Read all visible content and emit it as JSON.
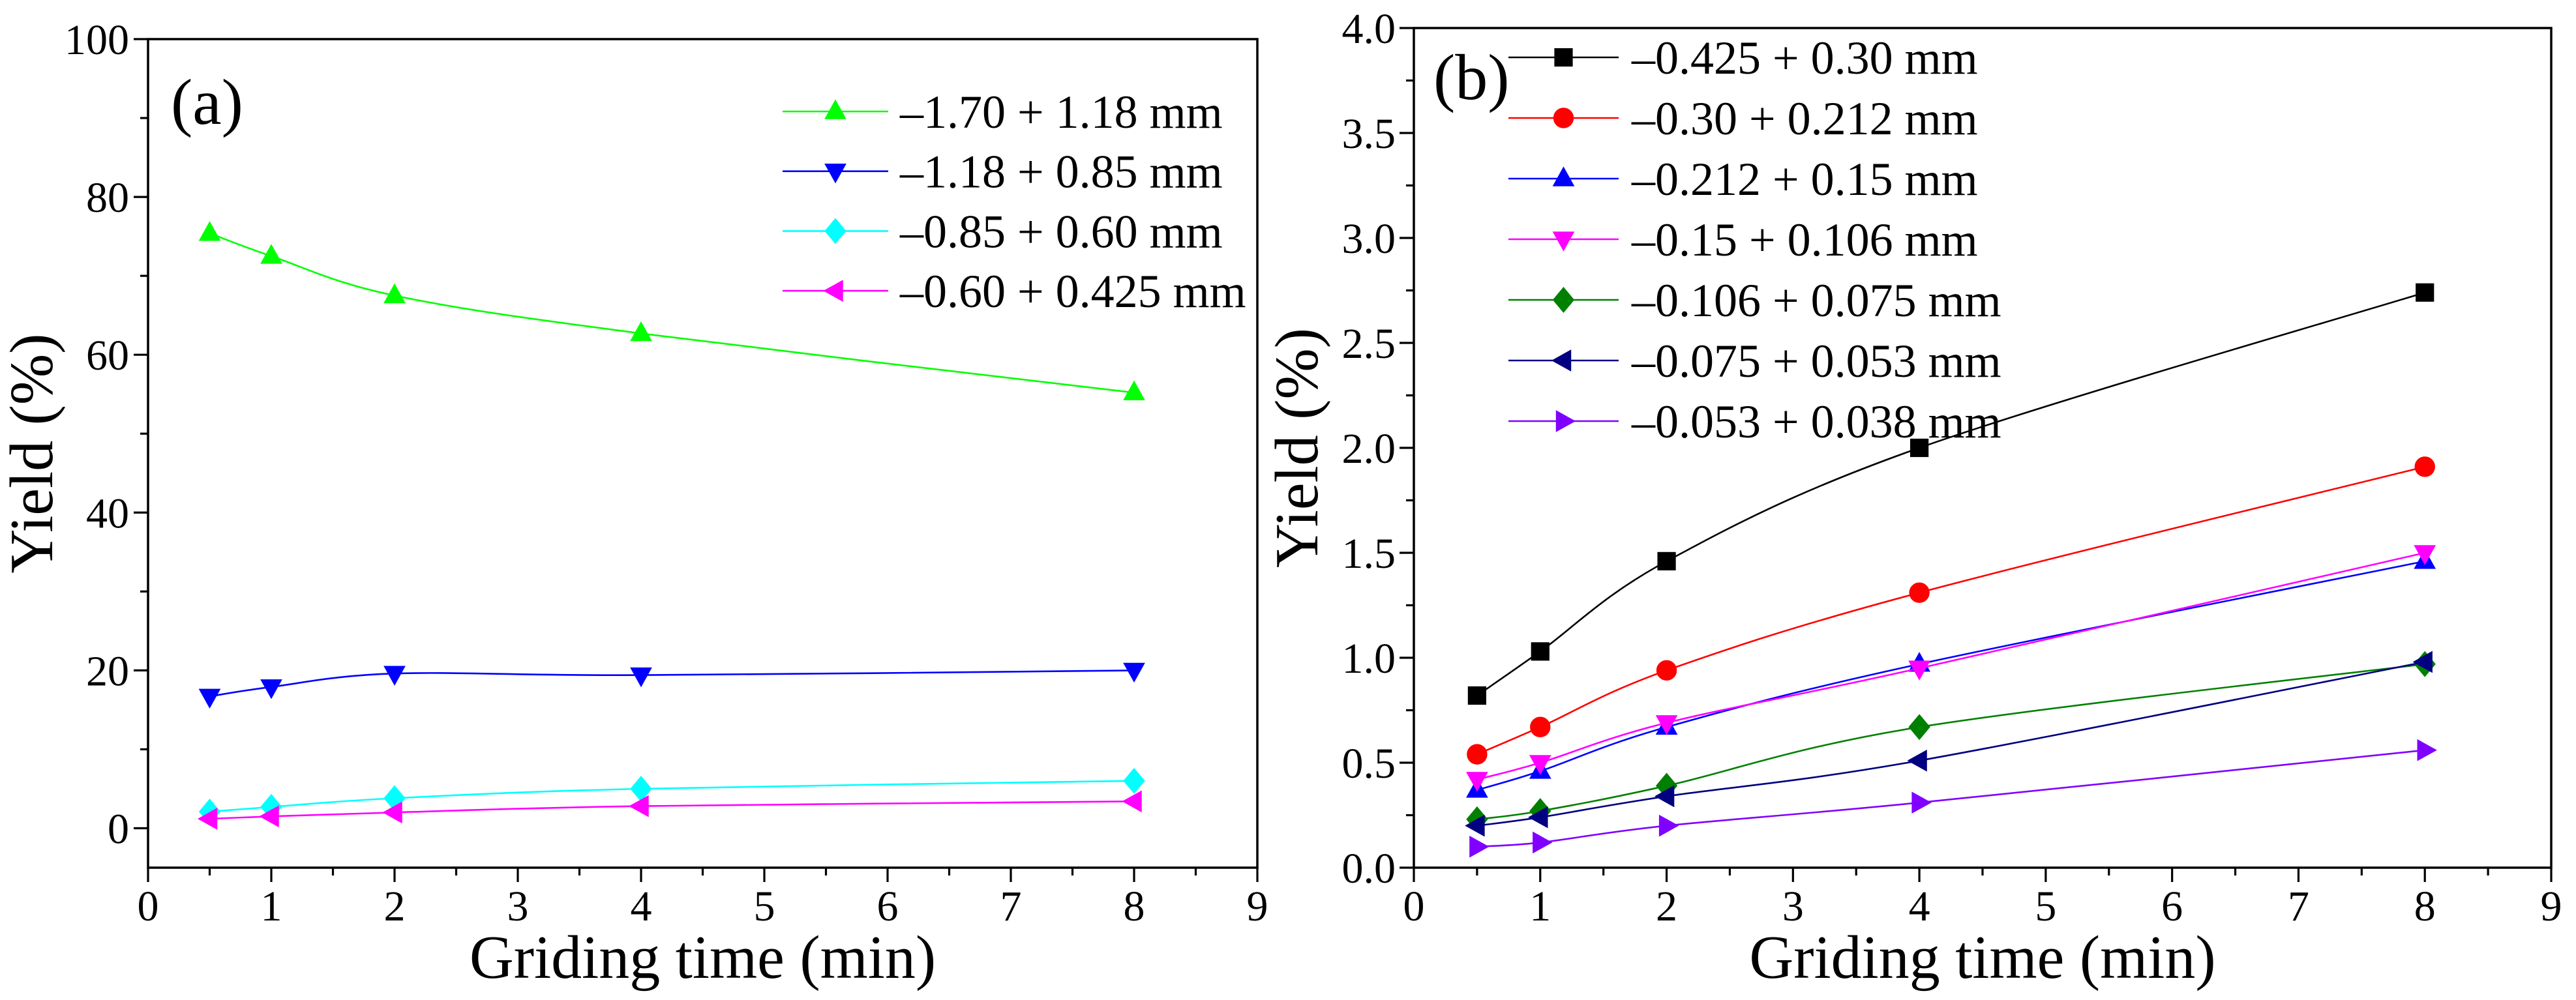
{
  "chart_data": [
    {
      "type": "line",
      "panel_label": "(a)",
      "xlabel": "Griding time (min)",
      "ylabel": "Yield (%)",
      "xlim": [
        0,
        9
      ],
      "ylim": [
        -5,
        100
      ],
      "xtick_values": [
        0,
        1,
        2,
        3,
        4,
        5,
        6,
        7,
        8,
        9
      ],
      "xtick_labels": [
        "0",
        "1",
        "2",
        "3",
        "4",
        "5",
        "6",
        "7",
        "8",
        "9"
      ],
      "ytick_values": [
        0,
        20,
        40,
        60,
        80,
        100
      ],
      "ytick_labels": [
        "0",
        "20",
        "40",
        "60",
        "80",
        "100"
      ],
      "grid": false,
      "legend_position": "top-right",
      "x": [
        0.5,
        1,
        2,
        4,
        8
      ],
      "series": [
        {
          "name": "–1.70 + 1.18 mm",
          "values": [
            75.4,
            72.5,
            67.5,
            62.7,
            55.2
          ],
          "color": "#00FF00",
          "marker": "triangle-up"
        },
        {
          "name": "–1.18 + 0.85 mm",
          "values": [
            16.7,
            17.9,
            19.6,
            19.4,
            20.0
          ],
          "color": "#0000FF",
          "marker": "triangle-down"
        },
        {
          "name": "–0.85 + 0.60 mm",
          "values": [
            2.1,
            2.7,
            3.8,
            5.0,
            6.0
          ],
          "color": "#00FFFF",
          "marker": "diamond"
        },
        {
          "name": "–0.60 + 0.425 mm",
          "values": [
            1.2,
            1.5,
            2.0,
            2.8,
            3.4
          ],
          "color": "#FF00FF",
          "marker": "triangle-left"
        }
      ]
    },
    {
      "type": "line",
      "panel_label": "(b)",
      "xlabel": "Griding time (min)",
      "ylabel": "Yield (%)",
      "xlim": [
        0,
        9
      ],
      "ylim": [
        0,
        4
      ],
      "xtick_values": [
        0,
        1,
        2,
        3,
        4,
        5,
        6,
        7,
        8,
        9
      ],
      "xtick_labels": [
        "0",
        "1",
        "2",
        "3",
        "4",
        "5",
        "6",
        "7",
        "8",
        "9"
      ],
      "ytick_values": [
        0,
        0.5,
        1,
        1.5,
        2,
        2.5,
        3,
        3.5,
        4
      ],
      "ytick_labels": [
        "0.0",
        "0.5",
        "1.0",
        "1.5",
        "2.0",
        "2.5",
        "3.0",
        "3.5",
        "4.0"
      ],
      "grid": false,
      "legend_position": "top-left",
      "x": [
        0.5,
        1,
        2,
        4,
        8
      ],
      "series": [
        {
          "name": "–0.425 + 0.30 mm",
          "values": [
            0.82,
            1.03,
            1.46,
            2.0,
            2.74
          ],
          "color": "#000000",
          "marker": "square"
        },
        {
          "name": "–0.30 + 0.212 mm",
          "values": [
            0.54,
            0.67,
            0.94,
            1.31,
            1.91
          ],
          "color": "#FF0000",
          "marker": "circle"
        },
        {
          "name": "–0.212 + 0.15 mm",
          "values": [
            0.37,
            0.46,
            0.67,
            0.97,
            1.46
          ],
          "color": "#0000FF",
          "marker": "triangle-up"
        },
        {
          "name": "–0.15 + 0.106 mm",
          "values": [
            0.42,
            0.5,
            0.69,
            0.95,
            1.5
          ],
          "color": "#FF00FF",
          "marker": "triangle-down"
        },
        {
          "name": "–0.106 + 0.075 mm",
          "values": [
            0.23,
            0.27,
            0.39,
            0.67,
            0.97
          ],
          "color": "#008000",
          "marker": "diamond"
        },
        {
          "name": "–0.075 + 0.053 mm",
          "values": [
            0.2,
            0.24,
            0.34,
            0.51,
            0.98
          ],
          "color": "#000080",
          "marker": "triangle-left"
        },
        {
          "name": "–0.053 + 0.038 mm",
          "values": [
            0.1,
            0.12,
            0.2,
            0.31,
            0.56
          ],
          "color": "#8000FF",
          "marker": "triangle-right"
        }
      ]
    }
  ]
}
